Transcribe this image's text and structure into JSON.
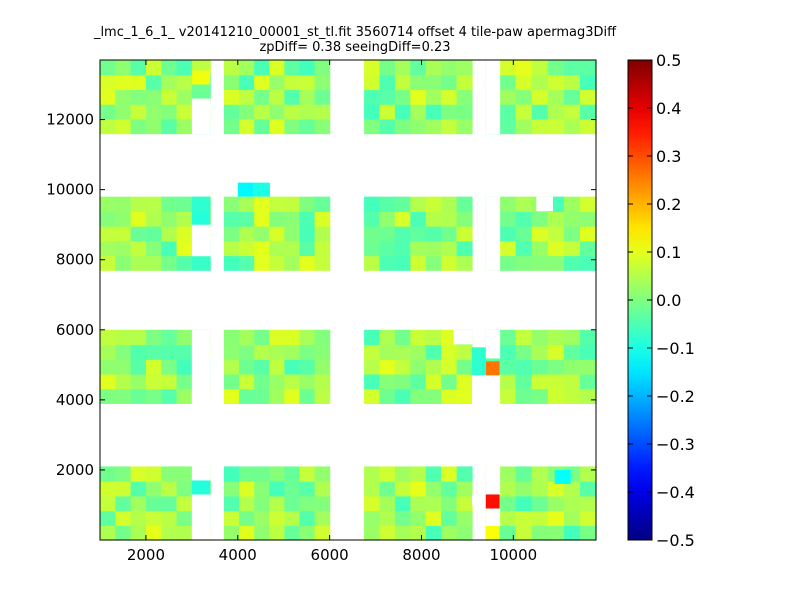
{
  "chart_data": {
    "type": "heatmap",
    "title_line1": "_lmc_1_6_1_ v20141210_00001_st_tl.fit 3560714 offset 4 tile-paw apermag3Diff",
    "title_line2": "zpDiff= 0.38 seeingDiff=0.23",
    "xlabel": "",
    "ylabel": "",
    "xlim": [
      1000,
      11800
    ],
    "ylim": [
      0,
      13700
    ],
    "xticks": [
      2000,
      4000,
      6000,
      8000,
      10000
    ],
    "yticks": [
      2000,
      4000,
      6000,
      8000,
      10000,
      12000
    ],
    "colorbar": {
      "colormap": "jet",
      "range": [
        -0.5,
        0.5
      ],
      "ticks": [
        0.5,
        0.4,
        0.3,
        0.2,
        0.1,
        0.0,
        -0.1,
        -0.2,
        -0.3,
        -0.4,
        -0.5
      ],
      "tick_labels": [
        "0.5",
        "0.4",
        "0.3",
        "0.2",
        "0.1",
        "0.0",
        "−0.1",
        "−0.2",
        "−0.3",
        "−0.4",
        "−0.5"
      ]
    },
    "cell_size": [
      340,
      430
    ],
    "columns": [
      {
        "x_range": [
          1000,
          3000
        ],
        "cells": 6
      },
      {
        "x_range": [
          3000,
          3400
        ],
        "cells": 1
      },
      {
        "x_range": [
          3700,
          6000
        ],
        "cells": 7
      },
      {
        "x_range": [
          6750,
          9100
        ],
        "cells": 7
      },
      {
        "x_range": [
          9400,
          9700
        ],
        "cells": 1
      },
      {
        "x_range": [
          9700,
          11800
        ],
        "cells": 6
      }
    ],
    "row_bands": [
      {
        "y_range": [
          0,
          2100
        ],
        "rows": 5
      },
      {
        "y_range": [
          3900,
          6000
        ],
        "rows": 5
      },
      {
        "y_range": [
          7700,
          9800
        ],
        "rows": 5
      },
      {
        "y_range": [
          11600,
          13700
        ],
        "rows": 5
      }
    ],
    "missing_regions": [
      {
        "x": [
          3000,
          3400
        ],
        "y": [
          0,
          1300
        ]
      },
      {
        "x": [
          3000,
          3400
        ],
        "y": [
          1700,
          2100
        ]
      },
      {
        "x": [
          3000,
          3400
        ],
        "y": [
          3900,
          6000
        ]
      },
      {
        "x": [
          3000,
          3400
        ],
        "y": [
          8100,
          9000
        ]
      },
      {
        "x": [
          3000,
          3400
        ],
        "y": [
          11600,
          12600
        ]
      },
      {
        "x": [
          9100,
          9400
        ],
        "y": [
          1000,
          1300
        ]
      },
      {
        "x": [
          9100,
          9400
        ],
        "y": [
          4400,
          4700
        ]
      },
      {
        "x": [
          9100,
          9400
        ],
        "y": [
          3900,
          4400
        ]
      },
      {
        "x": [
          9400,
          9700
        ],
        "y": [
          1300,
          2100
        ]
      },
      {
        "x": [
          9400,
          9700
        ],
        "y": [
          400,
          900
        ]
      },
      {
        "x": [
          9400,
          9700
        ],
        "y": [
          3900,
          4700
        ]
      },
      {
        "x": [
          9400,
          9700
        ],
        "y": [
          5200,
          6000
        ]
      },
      {
        "x": [
          9400,
          9700
        ],
        "y": [
          7700,
          9800
        ]
      },
      {
        "x": [
          9400,
          9700
        ],
        "y": [
          11600,
          13700
        ]
      },
      {
        "x": [
          8700,
          9100
        ],
        "y": [
          5600,
          6000
        ]
      },
      {
        "x": [
          10500,
          10850
        ],
        "y": [
          9400,
          9800
        ]
      }
    ],
    "outliers": [
      {
        "x": [
          4000,
          4350
        ],
        "y": [
          9800,
          10200
        ],
        "value": -0.13
      },
      {
        "x": [
          4350,
          4700
        ],
        "y": [
          9800,
          10200
        ],
        "value": -0.1
      },
      {
        "x": [
          9400,
          9700
        ],
        "y": [
          4700,
          5100
        ],
        "value": 0.26
      },
      {
        "x": [
          9400,
          9700
        ],
        "y": [
          900,
          1300
        ],
        "value": 0.36
      },
      {
        "x": [
          9400,
          9700
        ],
        "y": [
          0,
          400
        ],
        "value": 0.12
      },
      {
        "x": [
          3000,
          3400
        ],
        "y": [
          1300,
          1700
        ],
        "value": -0.09
      },
      {
        "x": [
          3000,
          3400
        ],
        "y": [
          9000,
          9400
        ],
        "value": -0.09
      },
      {
        "x": [
          3000,
          3400
        ],
        "y": [
          9400,
          9800
        ],
        "value": -0.08
      },
      {
        "x": [
          3000,
          3400
        ],
        "y": [
          7700,
          8100
        ],
        "value": -0.07
      },
      {
        "x": [
          3000,
          3400
        ],
        "y": [
          12600,
          13000
        ],
        "value": -0.02
      },
      {
        "x": [
          3000,
          3400
        ],
        "y": [
          13000,
          13400
        ],
        "value": 0.11
      },
      {
        "x": [
          9100,
          9400
        ],
        "y": [
          4700,
          5500
        ],
        "value": -0.08
      },
      {
        "x": [
          10900,
          11250
        ],
        "y": [
          1600,
          2000
        ],
        "value": -0.12
      }
    ],
    "typical_value_range": [
      -0.06,
      0.1
    ]
  }
}
